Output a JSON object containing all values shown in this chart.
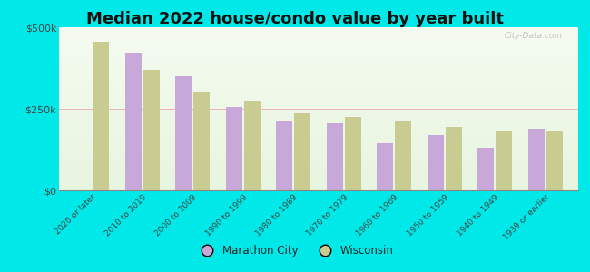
{
  "title": "Median 2022 house/condo value by year built",
  "categories": [
    "2020 or later",
    "2010 to 2019",
    "2000 to 2009",
    "1990 to 1999",
    "1980 to 1989",
    "1970 to 1979",
    "1960 to 1969",
    "1950 to 1959",
    "1940 to 1949",
    "1939 or earlier"
  ],
  "marathon_city": [
    null,
    420000,
    350000,
    255000,
    210000,
    205000,
    145000,
    170000,
    130000,
    190000
  ],
  "wisconsin": [
    455000,
    370000,
    300000,
    275000,
    235000,
    225000,
    215000,
    195000,
    180000,
    180000
  ],
  "marathon_color": "#c8a8d8",
  "wisconsin_color": "#c8cc90",
  "background_outer": "#00e8e8",
  "background_inner": "#ddeedd",
  "ylim": [
    0,
    500000
  ],
  "ytick_labels": [
    "$0",
    "$250k",
    "$500k"
  ],
  "title_fontsize": 13,
  "legend_labels": [
    "Marathon City",
    "Wisconsin"
  ],
  "watermark": "City-Data.com"
}
